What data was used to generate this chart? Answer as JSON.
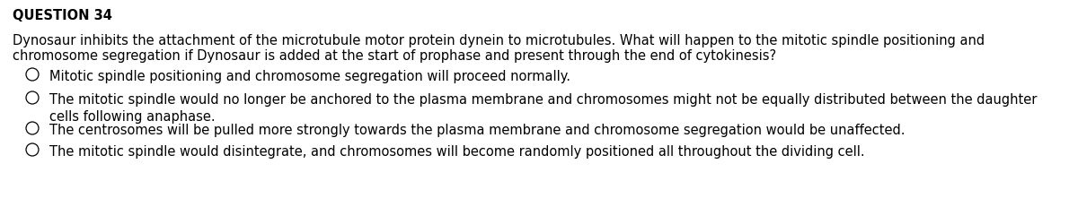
{
  "title": "QUESTION 34",
  "question_line1": "Dynosaur inhibits the attachment of the microtubule motor protein dynein to microtubules. What will happen to the mitotic spindle positioning and",
  "question_line2": "chromosome segregation if Dynosaur is added at the start of prophase and present through the end of cytokinesis?",
  "options": [
    "Mitotic spindle positioning and chromosome segregation will proceed normally.",
    "The mitotic spindle would no longer be anchored to the plasma membrane and chromosomes might not be equally distributed between the daughter\ncells following anaphase.",
    "The centrosomes will be pulled more strongly towards the plasma membrane and chromosome segregation would be unaffected.",
    "The mitotic spindle would disintegrate, and chromosomes will become randomly positioned all throughout the dividing cell."
  ],
  "background_color": "#ffffff",
  "text_color": "#000000",
  "title_fontsize": 10.5,
  "body_fontsize": 10.5,
  "fig_width": 12.0,
  "fig_height": 2.32,
  "dpi": 100
}
